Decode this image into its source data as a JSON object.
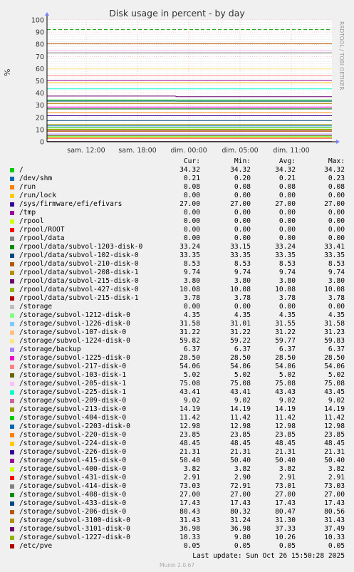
{
  "chart_data": {
    "type": "line",
    "title": "Disk usage in percent - by day",
    "ylabel": "%",
    "side_label": "RRDTOOL / TOBI OETIKER",
    "ylim": [
      0,
      100
    ],
    "yticks": [
      0,
      10,
      20,
      30,
      40,
      50,
      60,
      70,
      80,
      90,
      100
    ],
    "xticks": [
      "sam. 12:00",
      "sam. 18:00",
      "dim. 00:00",
      "dim. 05:00",
      "dim. 11:00"
    ],
    "warning_line": 92,
    "grid": true,
    "legend_header": {
      "cur": "Cur:",
      "min": "Min:",
      "avg": "Avg:",
      "max": "Max:"
    },
    "series": [
      {
        "name": "/",
        "color": "#00cc00",
        "cur": "34.32",
        "min": "34.32",
        "avg": "34.32",
        "max": "34.32"
      },
      {
        "name": "/dev/shm",
        "color": "#0066b3",
        "cur": "0.21",
        "min": "0.20",
        "avg": "0.21",
        "max": "0.23"
      },
      {
        "name": "/run",
        "color": "#ff8000",
        "cur": "0.08",
        "min": "0.08",
        "avg": "0.08",
        "max": "0.08"
      },
      {
        "name": "/run/lock",
        "color": "#ffcc00",
        "cur": "0.00",
        "min": "0.00",
        "avg": "0.00",
        "max": "0.00"
      },
      {
        "name": "/sys/firmware/efi/efivars",
        "color": "#330099",
        "cur": "27.00",
        "min": "27.00",
        "avg": "27.00",
        "max": "27.00"
      },
      {
        "name": "/tmp",
        "color": "#990099",
        "cur": "0.00",
        "min": "0.00",
        "avg": "0.00",
        "max": "0.00"
      },
      {
        "name": "/rpool",
        "color": "#ccff00",
        "cur": "0.00",
        "min": "0.00",
        "avg": "0.00",
        "max": "0.00"
      },
      {
        "name": "/rpool/ROOT",
        "color": "#ff0000",
        "cur": "0.00",
        "min": "0.00",
        "avg": "0.00",
        "max": "0.00"
      },
      {
        "name": "/rpool/data",
        "color": "#808080",
        "cur": "0.00",
        "min": "0.00",
        "avg": "0.00",
        "max": "0.00"
      },
      {
        "name": "/rpool/data/subvol-1203-disk-0",
        "color": "#008f00",
        "cur": "33.24",
        "min": "33.15",
        "avg": "33.24",
        "max": "33.41"
      },
      {
        "name": "/rpool/data/subvol-102-disk-0",
        "color": "#00487d",
        "cur": "33.35",
        "min": "33.35",
        "avg": "33.35",
        "max": "33.35"
      },
      {
        "name": "/rpool/data/subvol-210-disk-0",
        "color": "#b35a00",
        "cur": "8.53",
        "min": "8.53",
        "avg": "8.53",
        "max": "8.53"
      },
      {
        "name": "/rpool/data/subvol-208-disk-1",
        "color": "#b38f00",
        "cur": "9.74",
        "min": "9.74",
        "avg": "9.74",
        "max": "9.74"
      },
      {
        "name": "/rpool/data/subvol-215-disk-0",
        "color": "#6b006b",
        "cur": "3.80",
        "min": "3.80",
        "avg": "3.80",
        "max": "3.80"
      },
      {
        "name": "/rpool/data/subvol-427-disk-0",
        "color": "#8fb300",
        "cur": "10.08",
        "min": "10.08",
        "avg": "10.08",
        "max": "10.08"
      },
      {
        "name": "/rpool/data/subvol-215-disk-1",
        "color": "#b30000",
        "cur": "3.78",
        "min": "3.78",
        "avg": "3.78",
        "max": "3.78"
      },
      {
        "name": "/storage",
        "color": "#bebebe",
        "cur": "0.00",
        "min": "0.00",
        "avg": "0.00",
        "max": "0.00"
      },
      {
        "name": "/storage/subvol-1212-disk-0",
        "color": "#80ff80",
        "cur": "4.35",
        "min": "4.35",
        "avg": "4.35",
        "max": "4.35"
      },
      {
        "name": "/storage/subvol-1226-disk-0",
        "color": "#80c9ff",
        "cur": "31.58",
        "min": "31.01",
        "avg": "31.55",
        "max": "31.58"
      },
      {
        "name": "/storage/subvol-107-disk-0",
        "color": "#ffc080",
        "cur": "31.22",
        "min": "31.22",
        "avg": "31.22",
        "max": "31.23"
      },
      {
        "name": "/storage/subvol-1224-disk-0",
        "color": "#ffe680",
        "cur": "59.82",
        "min": "59.22",
        "avg": "59.77",
        "max": "59.83"
      },
      {
        "name": "/storage/backup",
        "color": "#aa80ff",
        "cur": "6.37",
        "min": "6.37",
        "avg": "6.37",
        "max": "6.37"
      },
      {
        "name": "/storage/subvol-1225-disk-0",
        "color": "#ee00cc",
        "cur": "28.50",
        "min": "28.50",
        "avg": "28.50",
        "max": "28.50"
      },
      {
        "name": "/storage/subvol-217-disk-0",
        "color": "#ff8080",
        "cur": "54.06",
        "min": "54.06",
        "avg": "54.06",
        "max": "54.06"
      },
      {
        "name": "/storage/subvol-103-disk-1",
        "color": "#666600",
        "cur": "5.02",
        "min": "5.02",
        "avg": "5.02",
        "max": "5.02"
      },
      {
        "name": "/storage/subvol-205-disk-1",
        "color": "#ffbfff",
        "cur": "75.08",
        "min": "75.08",
        "avg": "75.08",
        "max": "75.08"
      },
      {
        "name": "/storage/subvol-225-disk-1",
        "color": "#00ffcc",
        "cur": "43.41",
        "min": "43.41",
        "avg": "43.43",
        "max": "43.45"
      },
      {
        "name": "/storage/subvol-209-disk-0",
        "color": "#cc6699",
        "cur": "9.02",
        "min": "9.02",
        "avg": "9.02",
        "max": "9.02"
      },
      {
        "name": "/storage/subvol-213-disk-0",
        "color": "#999900",
        "cur": "14.19",
        "min": "14.19",
        "avg": "14.19",
        "max": "14.19"
      },
      {
        "name": "/storage/subvol-404-disk-0",
        "color": "#00cc00",
        "cur": "11.42",
        "min": "11.42",
        "avg": "11.42",
        "max": "11.42"
      },
      {
        "name": "/storage/subvol-2203-disk-0",
        "color": "#0066b3",
        "cur": "12.98",
        "min": "12.98",
        "avg": "12.98",
        "max": "12.98"
      },
      {
        "name": "/storage/subvol-220-disk-0",
        "color": "#ff8000",
        "cur": "23.85",
        "min": "23.85",
        "avg": "23.85",
        "max": "23.85"
      },
      {
        "name": "/storage/subvol-224-disk-0",
        "color": "#ffcc00",
        "cur": "48.45",
        "min": "48.45",
        "avg": "48.45",
        "max": "48.45"
      },
      {
        "name": "/storage/subvol-226-disk-0",
        "color": "#330099",
        "cur": "21.31",
        "min": "21.31",
        "avg": "21.31",
        "max": "21.31"
      },
      {
        "name": "/storage/subvol-415-disk-0",
        "color": "#990099",
        "cur": "50.40",
        "min": "50.40",
        "avg": "50.40",
        "max": "50.40"
      },
      {
        "name": "/storage/subvol-400-disk-0",
        "color": "#ccff00",
        "cur": "3.82",
        "min": "3.82",
        "avg": "3.82",
        "max": "3.82"
      },
      {
        "name": "/storage/subvol-431-disk-0",
        "color": "#ff0000",
        "cur": "2.91",
        "min": "2.90",
        "avg": "2.91",
        "max": "2.91"
      },
      {
        "name": "/storage/subvol-414-disk-0",
        "color": "#808080",
        "cur": "73.03",
        "min": "72.91",
        "avg": "73.01",
        "max": "73.03"
      },
      {
        "name": "/storage/subvol-408-disk-0",
        "color": "#008f00",
        "cur": "27.00",
        "min": "27.00",
        "avg": "27.00",
        "max": "27.00"
      },
      {
        "name": "/storage/subvol-433-disk-0",
        "color": "#00487d",
        "cur": "17.43",
        "min": "17.43",
        "avg": "17.43",
        "max": "17.43"
      },
      {
        "name": "/storage/subvol-206-disk-0",
        "color": "#b35a00",
        "cur": "80.43",
        "min": "80.32",
        "avg": "80.47",
        "max": "80.56"
      },
      {
        "name": "/storage/subvol-3100-disk-0",
        "color": "#b38f00",
        "cur": "31.43",
        "min": "31.24",
        "avg": "31.30",
        "max": "31.43"
      },
      {
        "name": "/storage/subvol-3101-disk-0",
        "color": "#6b006b",
        "cur": "36.98",
        "min": "36.98",
        "avg": "37.33",
        "max": "37.49"
      },
      {
        "name": "/storage/subvol-1227-disk-0",
        "color": "#8fb300",
        "cur": "10.33",
        "min": "9.80",
        "avg": "10.26",
        "max": "10.33"
      },
      {
        "name": "/etc/pve",
        "color": "#b30000",
        "cur": "0.05",
        "min": "0.05",
        "avg": "0.05",
        "max": "0.05"
      }
    ]
  },
  "last_update": "Last update: Sun Oct 26 15:50:28 2025",
  "footer": "Munin 2.0.67"
}
